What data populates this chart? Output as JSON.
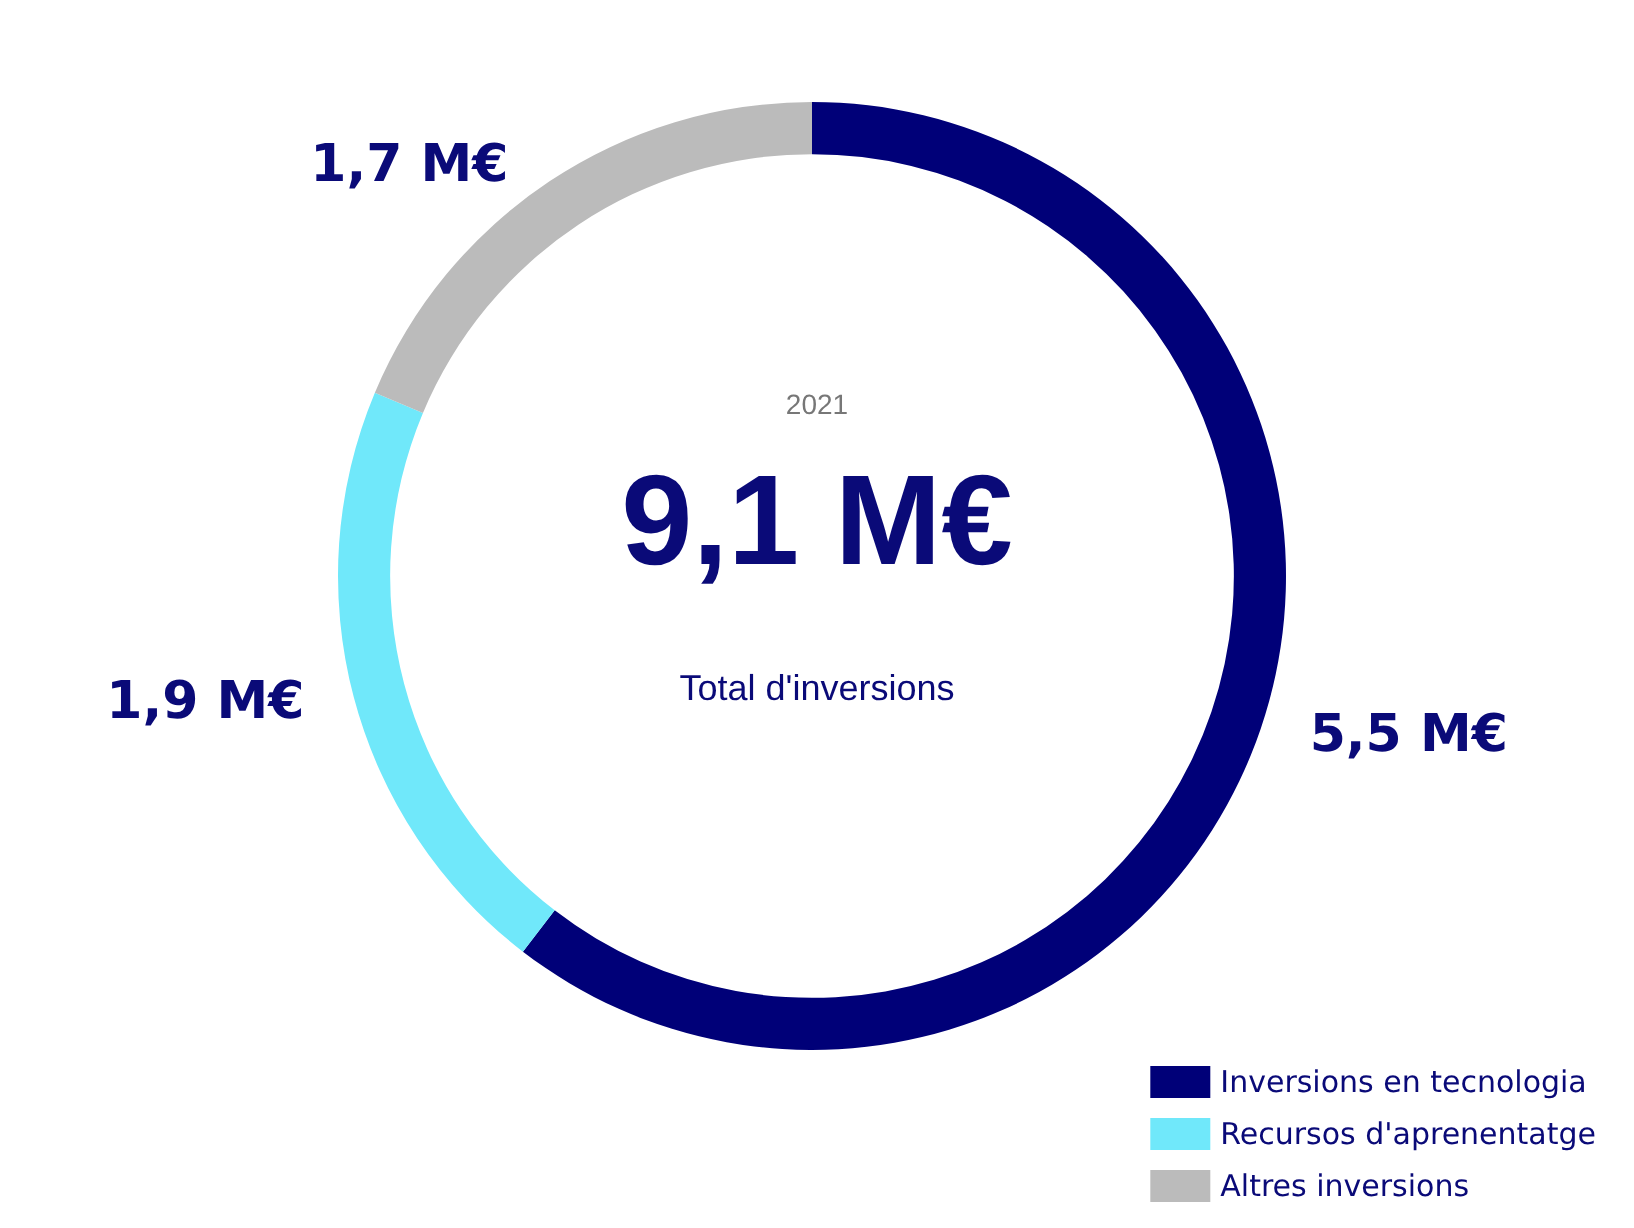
{
  "chart_data": {
    "type": "donut",
    "categories": [
      "Inversions en tecnologia",
      "Recursos d'aprenentatge",
      "Altres inversions"
    ],
    "values": [
      5.5,
      1.9,
      1.7
    ],
    "colors": [
      "#000078",
      "#70e8fa",
      "#bbbbbb"
    ],
    "value_labels": [
      "5,5 M€",
      "1,9 M€",
      "1,7 M€"
    ],
    "annotations": [
      "2021",
      "9,1 M€",
      "Total d'inversions"
    ],
    "legend": "bottom right"
  }
}
